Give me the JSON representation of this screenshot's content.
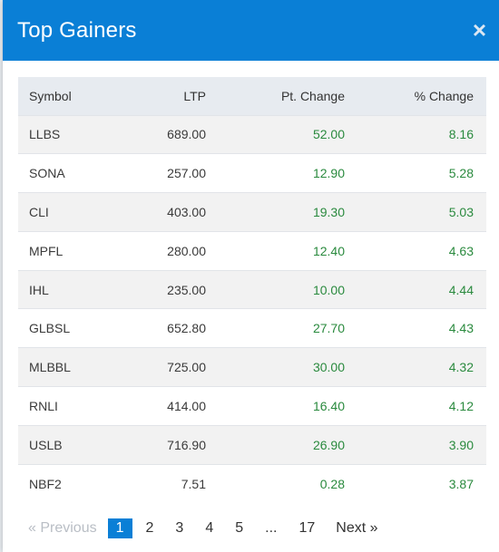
{
  "modal": {
    "title": "Top Gainers",
    "close_glyph": "×"
  },
  "table": {
    "headers": [
      "Symbol",
      "LTP",
      "Pt. Change",
      "% Change"
    ],
    "rows": [
      [
        "LLBS",
        "689.00",
        "52.00",
        "8.16"
      ],
      [
        "SONA",
        "257.00",
        "12.90",
        "5.28"
      ],
      [
        "CLI",
        "403.00",
        "19.30",
        "5.03"
      ],
      [
        "MPFL",
        "280.00",
        "12.40",
        "4.63"
      ],
      [
        "IHL",
        "235.00",
        "10.00",
        "4.44"
      ],
      [
        "GLBSL",
        "652.80",
        "27.70",
        "4.43"
      ],
      [
        "MLBBL",
        "725.00",
        "30.00",
        "4.32"
      ],
      [
        "RNLI",
        "414.00",
        "16.40",
        "4.12"
      ],
      [
        "USLB",
        "716.90",
        "26.90",
        "3.90"
      ],
      [
        "NBF2",
        "7.51",
        "0.28",
        "3.87"
      ]
    ]
  },
  "pagination": {
    "previous": "« Previous",
    "pages": [
      "1",
      "2",
      "3",
      "4",
      "5",
      "...",
      "17"
    ],
    "active_page": "1",
    "next": "Next »"
  },
  "colors": {
    "header_bg": "#0a7fd6",
    "positive": "#2a8a3e",
    "active_page": "#0a7fd6"
  }
}
